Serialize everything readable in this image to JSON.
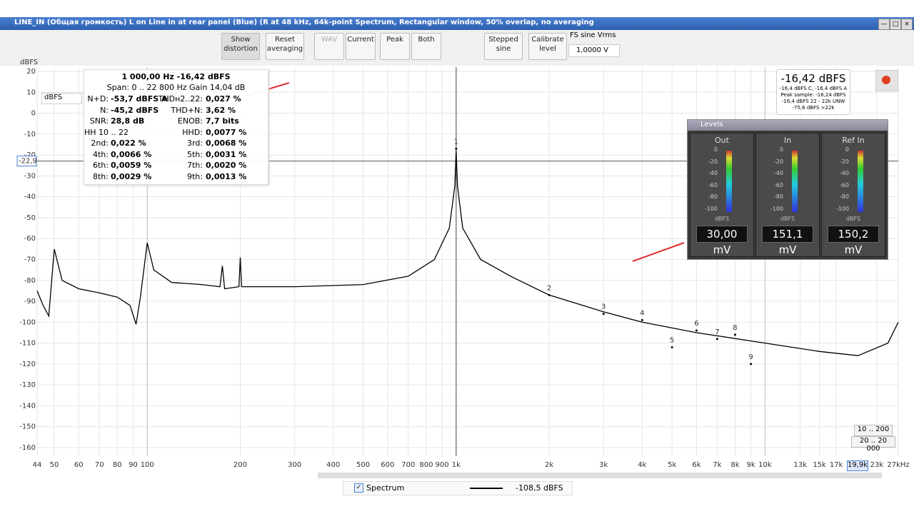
{
  "window": {
    "title": "LINE_IN (Общая громкость) L on Line in at rear panel (Blue) (R at 48 kHz, 64k-point Spectrum, Rectangular window, 50% overlap, no averaging"
  },
  "toolbar": {
    "buttons": [
      "Show distortion",
      "Reset averaging",
      "WAV",
      "Current",
      "Peak",
      "Both",
      "Stepped sine",
      "Calibrate level"
    ],
    "fs_label": "FS sine Vrms",
    "fs_value": "1,0000 V"
  },
  "distortion": {
    "header": "1 000,00 Hz  -16,42 dBFS",
    "span": "Span: 0 .. 22 800 Hz  Gain 14,04 dB",
    "rows": [
      [
        "N+D:",
        "-53,7 dBFS A",
        "THDн2..22:",
        "0,027 %"
      ],
      [
        "N:",
        "-45,2 dBFS",
        "THD+N:",
        "3,62 %"
      ],
      [
        "SNR:",
        "28,8 dB",
        "ENOB:",
        "7,7 bits"
      ],
      [
        "HH 10 .. 22",
        "",
        "HHD:",
        "0,0077 %"
      ],
      [
        "2nd:",
        "0,022 %",
        "3rd:",
        "0,0068 %"
      ],
      [
        "4th:",
        "0,0066 %",
        "5th:",
        "0,0031 %"
      ],
      [
        "6th:",
        "0,0059 %",
        "7th:",
        "0,0020 %"
      ],
      [
        "8th:",
        "0,0029 %",
        "9th:",
        "0,0013 %"
      ]
    ]
  },
  "readout": {
    "main": "-16,42 dBFS",
    "lines": [
      "-16,4 dBFS C, -16,4 dBFS A",
      "Peak sample: -16,24 dBFS",
      "-16,4 dBFS 22 - 22k UNW",
      "-75,6 dBFS >22k"
    ]
  },
  "levels": {
    "title": "Levels",
    "unit": "dBFS",
    "scale": [
      "0",
      "-20",
      "-40",
      "-60",
      "-80",
      "-100"
    ],
    "meters": [
      {
        "name": "Out",
        "value": "30,00 mV"
      },
      {
        "name": "In",
        "value": "151,1 mV"
      },
      {
        "name": "Ref In",
        "value": "150,2 mV"
      }
    ]
  },
  "chart_data": {
    "type": "line",
    "y_label": "dBFS",
    "unit_select": "dBFS",
    "log_x": true,
    "grid": true,
    "xlim": [
      44,
      27000
    ],
    "ylim": [
      -164,
      22
    ],
    "yticks": [
      20,
      10,
      0,
      -10,
      -20,
      -30,
      -40,
      -50,
      -60,
      -70,
      -80,
      -90,
      -100,
      -110,
      -120,
      -130,
      -140,
      -150,
      -160
    ],
    "xticks": [
      44,
      50,
      60,
      70,
      80,
      90,
      100,
      200,
      300,
      400,
      500,
      600,
      700,
      800,
      900,
      {
        "value": 1000,
        "label": "1k"
      },
      {
        "value": 2000,
        "label": "2k"
      },
      {
        "value": 3000,
        "label": "3k"
      },
      {
        "value": 4000,
        "label": "4k"
      },
      {
        "value": 5000,
        "label": "5k"
      },
      {
        "value": 6000,
        "label": "6k"
      },
      {
        "value": 7000,
        "label": "7k"
      },
      {
        "value": 8000,
        "label": "8k"
      },
      {
        "value": 9000,
        "label": "9k"
      },
      {
        "value": 10000,
        "label": "10k"
      },
      {
        "value": 13000,
        "label": "13k"
      },
      {
        "value": 15000,
        "label": "15k"
      },
      {
        "value": 17000,
        "label": "17k"
      },
      {
        "value": 23000,
        "label": "23k"
      },
      {
        "value": 27000,
        "label": "27kHz"
      }
    ],
    "cursor_y": {
      "value": -22.9,
      "label": "-22,9"
    },
    "cursor_x": 1000,
    "harmonics": [
      {
        "n": 1,
        "x": 1000,
        "y": -17
      },
      {
        "n": 2,
        "x": 2000,
        "y": -87
      },
      {
        "n": 3,
        "x": 3000,
        "y": -96
      },
      {
        "n": 4,
        "x": 4000,
        "y": -99
      },
      {
        "n": 5,
        "x": 5000,
        "y": -112
      },
      {
        "n": 6,
        "x": 6000,
        "y": -104
      },
      {
        "n": 7,
        "x": 7000,
        "y": -108
      },
      {
        "n": 8,
        "x": 8000,
        "y": -106
      },
      {
        "n": 9,
        "x": 9000,
        "y": -120
      }
    ],
    "series": [
      {
        "name": "Spectrum",
        "color": "#000000",
        "legend_value": "-108,5 dBFS",
        "x": [
          44,
          46,
          48,
          50,
          53,
          60,
          70,
          80,
          88,
          92,
          95,
          100,
          105,
          120,
          150,
          172,
          175,
          178,
          198,
          200,
          202,
          300,
          500,
          700,
          850,
          950,
          990,
          1000,
          1010,
          1050,
          1200,
          1500,
          2000,
          3000,
          4000,
          6000,
          10000,
          15000,
          20000,
          25000,
          27000
        ],
        "values": [
          -85,
          -92,
          -97,
          -65,
          -80,
          -84,
          -86,
          -88,
          -92,
          -101,
          -88,
          -62,
          -75,
          -81,
          -82,
          -83,
          -73,
          -84,
          -83,
          -69,
          -83,
          -83,
          -82,
          -78,
          -70,
          -55,
          -35,
          -18,
          -35,
          -55,
          -70,
          -78,
          -87,
          -95,
          -100,
          -105,
          -110,
          -114,
          -116,
          -110,
          -100
        ]
      }
    ],
    "ranges": [
      "10 .. 200",
      "20 .. 20 000"
    ],
    "freq_box": "19,9k"
  }
}
